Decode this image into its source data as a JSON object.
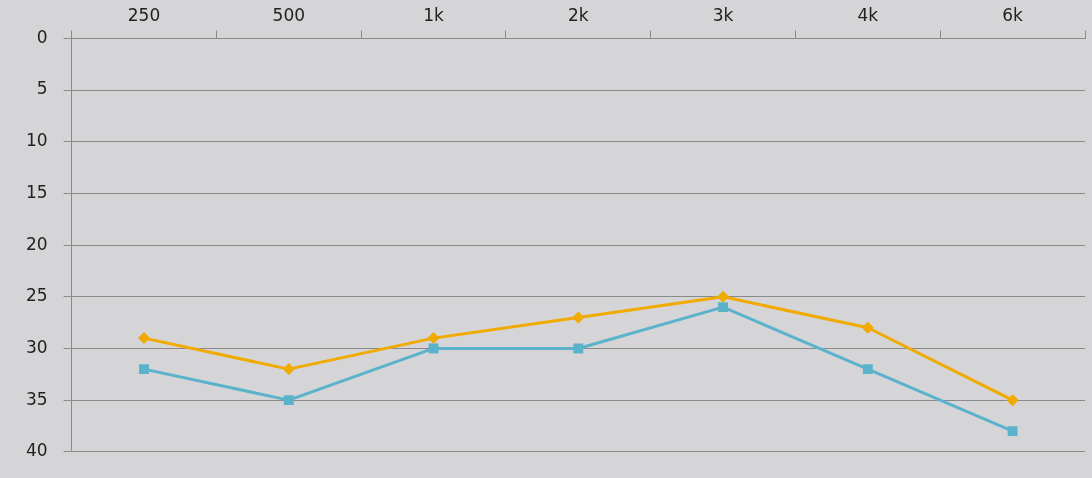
{
  "chart_data": {
    "type": "line",
    "categories": [
      "250",
      "500",
      "1k",
      "2k",
      "3k",
      "4k",
      "6k"
    ],
    "series": [
      {
        "color": "#f0aa00",
        "marker": "diamond",
        "values": [
          29,
          32,
          29,
          27,
          25,
          28,
          35
        ]
      },
      {
        "color": "#5bb3cb",
        "marker": "square",
        "values": [
          32,
          35,
          30,
          30,
          26,
          32,
          38
        ]
      }
    ],
    "ylim": [
      40,
      0
    ],
    "yticks": [
      0,
      5,
      10,
      15,
      20,
      25,
      30,
      35,
      40
    ],
    "grid": "y",
    "legend": false,
    "line_style": "solid"
  }
}
